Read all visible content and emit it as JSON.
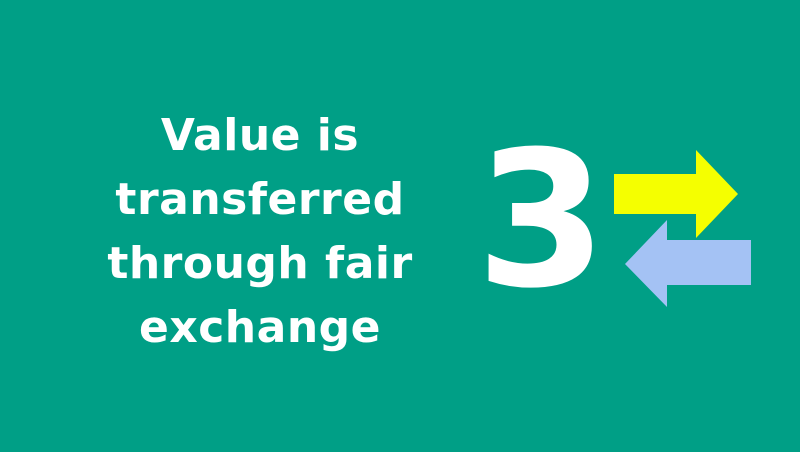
{
  "slide": {
    "background_color": "#009f86",
    "statement_lines": [
      "Value is",
      "transferred",
      "through fair",
      "exchange"
    ],
    "number": "3",
    "exchange_icon": {
      "name": "exchange-arrows-icon",
      "right_arrow_color": "#f5ff00",
      "left_arrow_color": "#a4c2f4"
    }
  }
}
